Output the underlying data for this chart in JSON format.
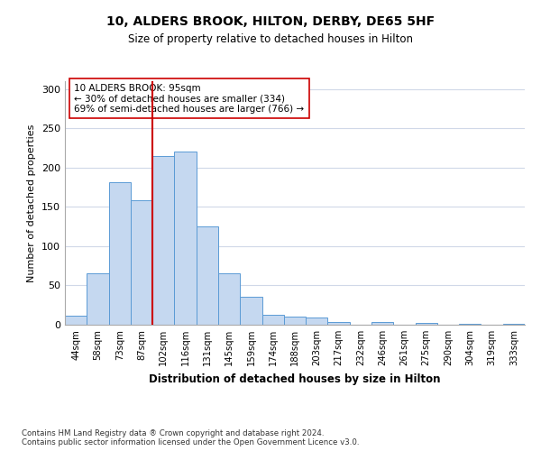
{
  "title": "10, ALDERS BROOK, HILTON, DERBY, DE65 5HF",
  "subtitle": "Size of property relative to detached houses in Hilton",
  "xlabel": "Distribution of detached houses by size in Hilton",
  "ylabel": "Number of detached properties",
  "bar_labels": [
    "44sqm",
    "58sqm",
    "73sqm",
    "87sqm",
    "102sqm",
    "116sqm",
    "131sqm",
    "145sqm",
    "159sqm",
    "174sqm",
    "188sqm",
    "203sqm",
    "217sqm",
    "232sqm",
    "246sqm",
    "261sqm",
    "275sqm",
    "290sqm",
    "304sqm",
    "319sqm",
    "333sqm"
  ],
  "bar_values": [
    12,
    65,
    181,
    158,
    215,
    220,
    125,
    65,
    36,
    13,
    10,
    9,
    4,
    0,
    3,
    0,
    2,
    0,
    1,
    0,
    1
  ],
  "bar_color": "#c5d8f0",
  "bar_edge_color": "#5b9bd5",
  "vline_idx": 4,
  "vline_color": "#cc0000",
  "annotation_text": "10 ALDERS BROOK: 95sqm\n← 30% of detached houses are smaller (334)\n69% of semi-detached houses are larger (766) →",
  "annotation_box_color": "#ffffff",
  "annotation_box_edge": "#cc0000",
  "ylim": [
    0,
    310
  ],
  "yticks": [
    0,
    50,
    100,
    150,
    200,
    250,
    300
  ],
  "footer_line1": "Contains HM Land Registry data ® Crown copyright and database right 2024.",
  "footer_line2": "Contains public sector information licensed under the Open Government Licence v3.0.",
  "bg_color": "#ffffff",
  "grid_color": "#d0d8e8"
}
